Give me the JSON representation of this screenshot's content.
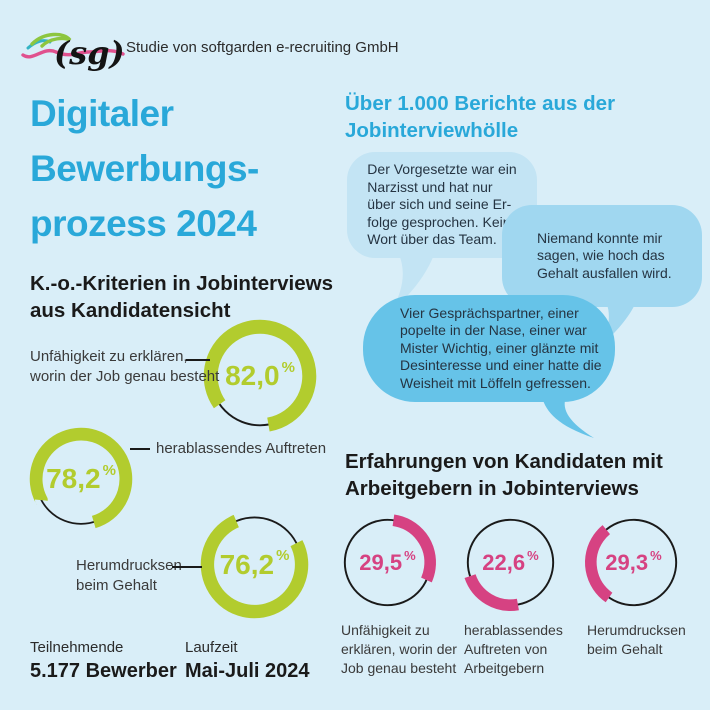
{
  "colors": {
    "bg": "#d9eef8",
    "blue": "#29a8d9",
    "green": "#b2cc2e",
    "pink": "#d64282",
    "ink": "#1a1a1a",
    "label": "#3a3a3a",
    "track": "#1a1a1a",
    "bubble1": "#c3e4f4",
    "bubble2": "#a0d7f0",
    "bubble3": "#66c3e8",
    "logo-pink": "#e0518e",
    "logo-green": "#8dc63f",
    "logo-teal": "#35b4c4"
  },
  "header": {
    "logo_text": "(sg)",
    "source_label": "Studie von softgarden e-recruiting GmbH"
  },
  "title": {
    "text": "Digitaler\nBewerbungs-\nprozess 2024"
  },
  "left_section": {
    "heading": "K.-o.-Kriterien in Jobinterviews\naus Kandidatensicht",
    "donuts": [
      {
        "value_display": "82,0",
        "unit": "%",
        "pct": 82.0,
        "label": "Unfähigkeit zu erklären,\nworin der Job genau besteht"
      },
      {
        "value_display": "78,2",
        "unit": "%",
        "pct": 78.2,
        "label": "herablassendes Auftreten"
      },
      {
        "value_display": "76,2",
        "unit": "%",
        "pct": 76.2,
        "label": "Herumdrucksen\nbeim Gehalt"
      }
    ]
  },
  "right_top": {
    "heading": "Über 1.000 Berichte aus der\nJobinterviewhölle",
    "bubbles": [
      {
        "text": "Der Vorgesetzte war ein\nNarzisst und hat nur\nüber sich und seine Er-\nfolge gesprochen. Kein\nWort über das Team."
      },
      {
        "text": "Niemand konnte mir\nsagen, wie hoch das\nGehalt ausfallen wird."
      },
      {
        "text": "Vier Gesprächspartner, einer\npopelte in der Nase, einer war\nMister Wichtig, einer glänzte mit\nDesinteresse und einer hatte die\nWeisheit mit Löffeln gefressen."
      }
    ]
  },
  "right_bottom": {
    "heading": "Erfahrungen von Kandidaten mit\nArbeitgebern in Jobinterviews",
    "donuts": [
      {
        "value_display": "29,5",
        "unit": "%",
        "pct": 29.5,
        "label": "Unfähigkeit zu\nerklären, worin der\nJob genau besteht"
      },
      {
        "value_display": "22,6",
        "unit": "%",
        "pct": 22.6,
        "label": "herablassendes\nAuftreten von\nArbeitgebern"
      },
      {
        "value_display": "29,3",
        "unit": "%",
        "pct": 29.3,
        "label": "Herumdrucksen\nbeim Gehalt"
      }
    ]
  },
  "footer": {
    "participants_label": "Teilnehmende",
    "participants_value": "5.177 Bewerber",
    "period_label": "Laufzeit",
    "period_value": "Mai-Juli 2024"
  },
  "chart_data": [
    {
      "type": "pie",
      "subtype": "donut-percentages",
      "title": "K.-o.-Kriterien in Jobinterviews aus Kandidatensicht",
      "categories": [
        "Unfähigkeit zu erklären, worin der Job genau besteht",
        "herablassendes Auftreten",
        "Herumdrucksen beim Gehalt"
      ],
      "values": [
        82.0,
        78.2,
        76.2
      ],
      "unit": "%",
      "color": "#b2cc2e"
    },
    {
      "type": "pie",
      "subtype": "donut-percentages",
      "title": "Erfahrungen von Kandidaten mit Arbeitgebern in Jobinterviews",
      "categories": [
        "Unfähigkeit zu erklären, worin der Job genau besteht",
        "herablassendes Auftreten von Arbeitgebern",
        "Herumdrucksen beim Gehalt"
      ],
      "values": [
        29.5,
        22.6,
        29.3
      ],
      "unit": "%",
      "color": "#d64282"
    }
  ]
}
